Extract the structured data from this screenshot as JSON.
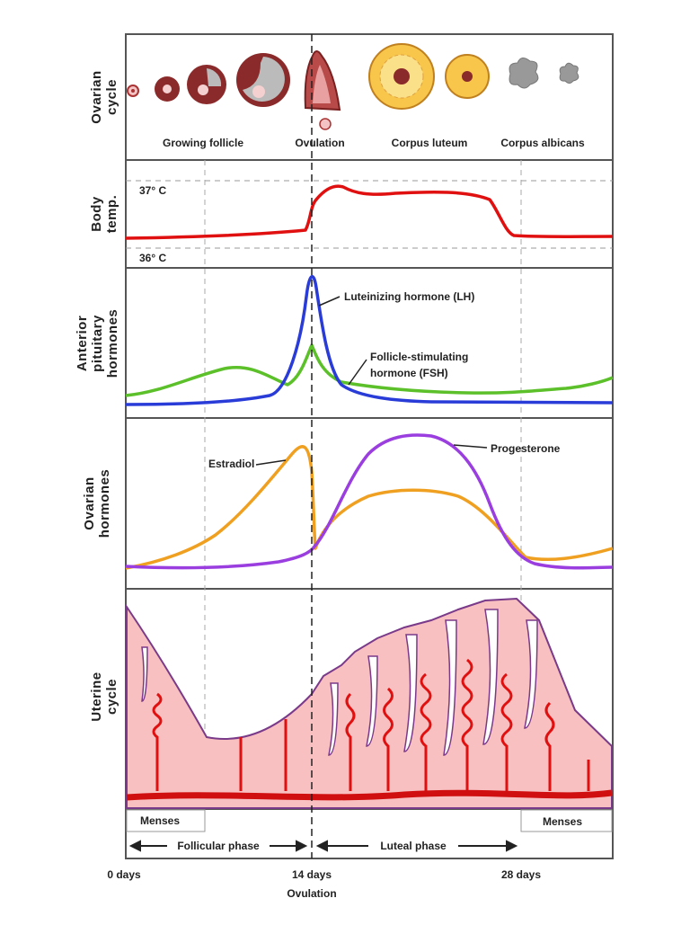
{
  "row_labels": [
    [
      "Ovarian",
      "cycle"
    ],
    [
      "Body",
      "temp."
    ],
    [
      "Anterior",
      "pituitary",
      "hormones"
    ],
    [
      "Ovarian",
      "hormones"
    ],
    [
      "Uterine",
      "cycle"
    ]
  ],
  "ovarian_stages": [
    "Growing follicle",
    "Ovulation",
    "Corpus luteum",
    "Corpus albicans"
  ],
  "temperature": {
    "high": "37° C",
    "low": "36° C"
  },
  "pituitary": {
    "lh": "Luteinizing hormone (LH)",
    "fsh": [
      "Follicle-stimulating",
      "hormone (FSH)"
    ]
  },
  "ovarian_hormones": {
    "estradiol": "Estradiol",
    "progesterone": "Progesterone"
  },
  "phases": {
    "menses": [
      "Menses",
      "Menses"
    ],
    "follicular": "Follicular phase",
    "luteal": "Luteal phase"
  },
  "timeline": {
    "days": [
      "0 days",
      "14 days",
      "28 days"
    ],
    "ovulation": "Ovulation"
  }
}
